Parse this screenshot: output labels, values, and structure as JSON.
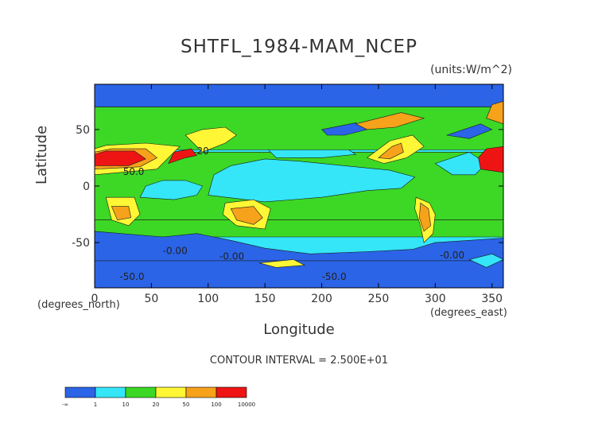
{
  "chart_data": {
    "type": "heatmap",
    "title": "SHTFL_1984-MAM_NCEP",
    "units_label": "(units:W/m^2)",
    "xlabel": "Longitude",
    "ylabel": "Latitude",
    "x_unit_label": "(degrees_east)",
    "y_unit_label": "(degrees_north)",
    "xlim": [
      0,
      360
    ],
    "ylim": [
      -90,
      90
    ],
    "x_ticks": [
      0,
      50,
      100,
      150,
      200,
      250,
      300,
      350
    ],
    "y_ticks": [
      -50,
      0,
      50
    ],
    "contour_interval_text": "CONTOUR INTERVAL = 2.500E+01",
    "contour_labels": [
      {
        "text": "-50.0",
        "lon": 22,
        "lat": -83
      },
      {
        "text": "-50.0",
        "lon": 200,
        "lat": -83
      },
      {
        "text": "-0.00",
        "lon": 60,
        "lat": -60
      },
      {
        "text": "-0.00",
        "lon": 110,
        "lat": -65
      },
      {
        "text": "-0.00",
        "lon": 304,
        "lat": -64
      },
      {
        "text": "20",
        "lon": 90,
        "lat": 28
      },
      {
        "text": "50.0",
        "lon": 25,
        "lat": 10
      }
    ],
    "colorbar": {
      "colors": [
        "#2b64e6",
        "#34e6f8",
        "#3cd825",
        "#fff735",
        "#f6a21b",
        "#ee1414"
      ],
      "labels": [
        "-∞",
        "1",
        "10",
        "20",
        "50",
        "100",
        "10000"
      ]
    },
    "regions": [
      {
        "level": 2,
        "points": [
          [
            0,
            -30
          ],
          [
            360,
            -30
          ],
          [
            360,
            30
          ],
          [
            0,
            30
          ]
        ]
      },
      {
        "level": 1,
        "points": [
          [
            100,
            -8
          ],
          [
            150,
            -14
          ],
          [
            200,
            -10
          ],
          [
            240,
            -4
          ],
          [
            270,
            -2
          ],
          [
            282,
            8
          ],
          [
            260,
            14
          ],
          [
            220,
            18
          ],
          [
            180,
            22
          ],
          [
            150,
            24
          ],
          [
            120,
            18
          ],
          [
            105,
            10
          ]
        ]
      },
      {
        "level": 1,
        "points": [
          [
            40,
            -10
          ],
          [
            70,
            -12
          ],
          [
            90,
            -8
          ],
          [
            95,
            0
          ],
          [
            80,
            5
          ],
          [
            60,
            5
          ],
          [
            45,
            0
          ]
        ]
      },
      {
        "level": 1,
        "points": [
          [
            150,
            35
          ],
          [
            180,
            40
          ],
          [
            215,
            38
          ],
          [
            230,
            28
          ],
          [
            200,
            25
          ],
          [
            160,
            25
          ]
        ]
      },
      {
        "level": 1,
        "points": [
          [
            300,
            20
          ],
          [
            330,
            30
          ],
          [
            345,
            20
          ],
          [
            335,
            10
          ],
          [
            315,
            10
          ]
        ]
      },
      {
        "level": 2,
        "points": [
          [
            0,
            -30
          ],
          [
            360,
            -30
          ],
          [
            360,
            -45
          ],
          [
            0,
            -45
          ]
        ]
      },
      {
        "level": 0,
        "points": [
          [
            0,
            -40
          ],
          [
            60,
            -45
          ],
          [
            90,
            -42
          ],
          [
            120,
            -48
          ],
          [
            150,
            -55
          ],
          [
            190,
            -60
          ],
          [
            240,
            -58
          ],
          [
            280,
            -56
          ],
          [
            300,
            -50
          ],
          [
            330,
            -48
          ],
          [
            360,
            -46
          ],
          [
            360,
            -90
          ],
          [
            0,
            -90
          ]
        ]
      },
      {
        "level": 0,
        "points": [
          [
            0,
            -90
          ],
          [
            360,
            -90
          ],
          [
            360,
            -66
          ],
          [
            0,
            -66
          ]
        ]
      },
      {
        "level": 2,
        "points": [
          [
            0,
            32
          ],
          [
            360,
            32
          ],
          [
            360,
            70
          ],
          [
            0,
            70
          ]
        ]
      },
      {
        "level": 0,
        "points": [
          [
            0,
            70
          ],
          [
            360,
            70
          ],
          [
            360,
            90
          ],
          [
            0,
            90
          ]
        ]
      },
      {
        "level": 0,
        "points": [
          [
            200,
            50
          ],
          [
            230,
            56
          ],
          [
            240,
            50
          ],
          [
            220,
            45
          ],
          [
            205,
            45
          ]
        ]
      },
      {
        "level": 0,
        "points": [
          [
            310,
            45
          ],
          [
            340,
            55
          ],
          [
            350,
            50
          ],
          [
            330,
            42
          ]
        ]
      },
      {
        "level": 3,
        "points": [
          [
            0,
            10
          ],
          [
            55,
            15
          ],
          [
            70,
            30
          ],
          [
            75,
            35
          ],
          [
            45,
            38
          ],
          [
            10,
            36
          ],
          [
            0,
            33
          ]
        ]
      },
      {
        "level": 4,
        "points": [
          [
            0,
            15
          ],
          [
            40,
            17
          ],
          [
            55,
            25
          ],
          [
            45,
            33
          ],
          [
            15,
            33
          ],
          [
            0,
            30
          ]
        ]
      },
      {
        "level": 5,
        "points": [
          [
            0,
            18
          ],
          [
            30,
            18
          ],
          [
            45,
            24
          ],
          [
            35,
            31
          ],
          [
            10,
            31
          ],
          [
            0,
            28
          ]
        ]
      },
      {
        "level": 5,
        "points": [
          [
            65,
            20
          ],
          [
            80,
            25
          ],
          [
            90,
            27
          ],
          [
            85,
            33
          ],
          [
            70,
            30
          ]
        ]
      },
      {
        "level": 3,
        "points": [
          [
            95,
            30
          ],
          [
            115,
            38
          ],
          [
            125,
            45
          ],
          [
            115,
            52
          ],
          [
            95,
            50
          ],
          [
            80,
            45
          ]
        ]
      },
      {
        "level": 3,
        "points": [
          [
            115,
            -15
          ],
          [
            140,
            -12
          ],
          [
            155,
            -20
          ],
          [
            150,
            -38
          ],
          [
            125,
            -35
          ],
          [
            113,
            -25
          ]
        ]
      },
      {
        "level": 4,
        "points": [
          [
            120,
            -20
          ],
          [
            140,
            -18
          ],
          [
            148,
            -28
          ],
          [
            140,
            -34
          ],
          [
            125,
            -30
          ]
        ]
      },
      {
        "level": 3,
        "points": [
          [
            10,
            -10
          ],
          [
            35,
            -10
          ],
          [
            40,
            -25
          ],
          [
            30,
            -35
          ],
          [
            15,
            -30
          ]
        ]
      },
      {
        "level": 4,
        "points": [
          [
            15,
            -18
          ],
          [
            30,
            -18
          ],
          [
            32,
            -28
          ],
          [
            20,
            -30
          ]
        ]
      },
      {
        "level": 3,
        "points": [
          [
            240,
            25
          ],
          [
            260,
            40
          ],
          [
            280,
            45
          ],
          [
            290,
            35
          ],
          [
            275,
            25
          ],
          [
            255,
            20
          ]
        ]
      },
      {
        "level": 4,
        "points": [
          [
            250,
            25
          ],
          [
            262,
            35
          ],
          [
            270,
            38
          ],
          [
            272,
            30
          ],
          [
            260,
            24
          ]
        ]
      },
      {
        "level": 3,
        "points": [
          [
            283,
            -10
          ],
          [
            295,
            -15
          ],
          [
            300,
            -25
          ],
          [
            298,
            -42
          ],
          [
            290,
            -50
          ],
          [
            287,
            -35
          ],
          [
            282,
            -20
          ]
        ]
      },
      {
        "level": 4,
        "points": [
          [
            287,
            -15
          ],
          [
            294,
            -20
          ],
          [
            296,
            -35
          ],
          [
            290,
            -40
          ],
          [
            286,
            -28
          ]
        ]
      },
      {
        "level": 5,
        "points": [
          [
            340,
            15
          ],
          [
            360,
            12
          ],
          [
            360,
            35
          ],
          [
            345,
            33
          ],
          [
            338,
            25
          ]
        ]
      },
      {
        "level": 4,
        "points": [
          [
            230,
            55
          ],
          [
            270,
            65
          ],
          [
            290,
            60
          ],
          [
            265,
            52
          ],
          [
            240,
            50
          ]
        ]
      },
      {
        "level": 4,
        "points": [
          [
            345,
            60
          ],
          [
            360,
            55
          ],
          [
            360,
            75
          ],
          [
            350,
            72
          ]
        ]
      },
      {
        "level": 1,
        "points": [
          [
            330,
            -65
          ],
          [
            350,
            -60
          ],
          [
            360,
            -65
          ],
          [
            345,
            -72
          ]
        ]
      },
      {
        "level": 3,
        "points": [
          [
            145,
            -68
          ],
          [
            175,
            -65
          ],
          [
            185,
            -70
          ],
          [
            160,
            -72
          ]
        ]
      }
    ]
  }
}
